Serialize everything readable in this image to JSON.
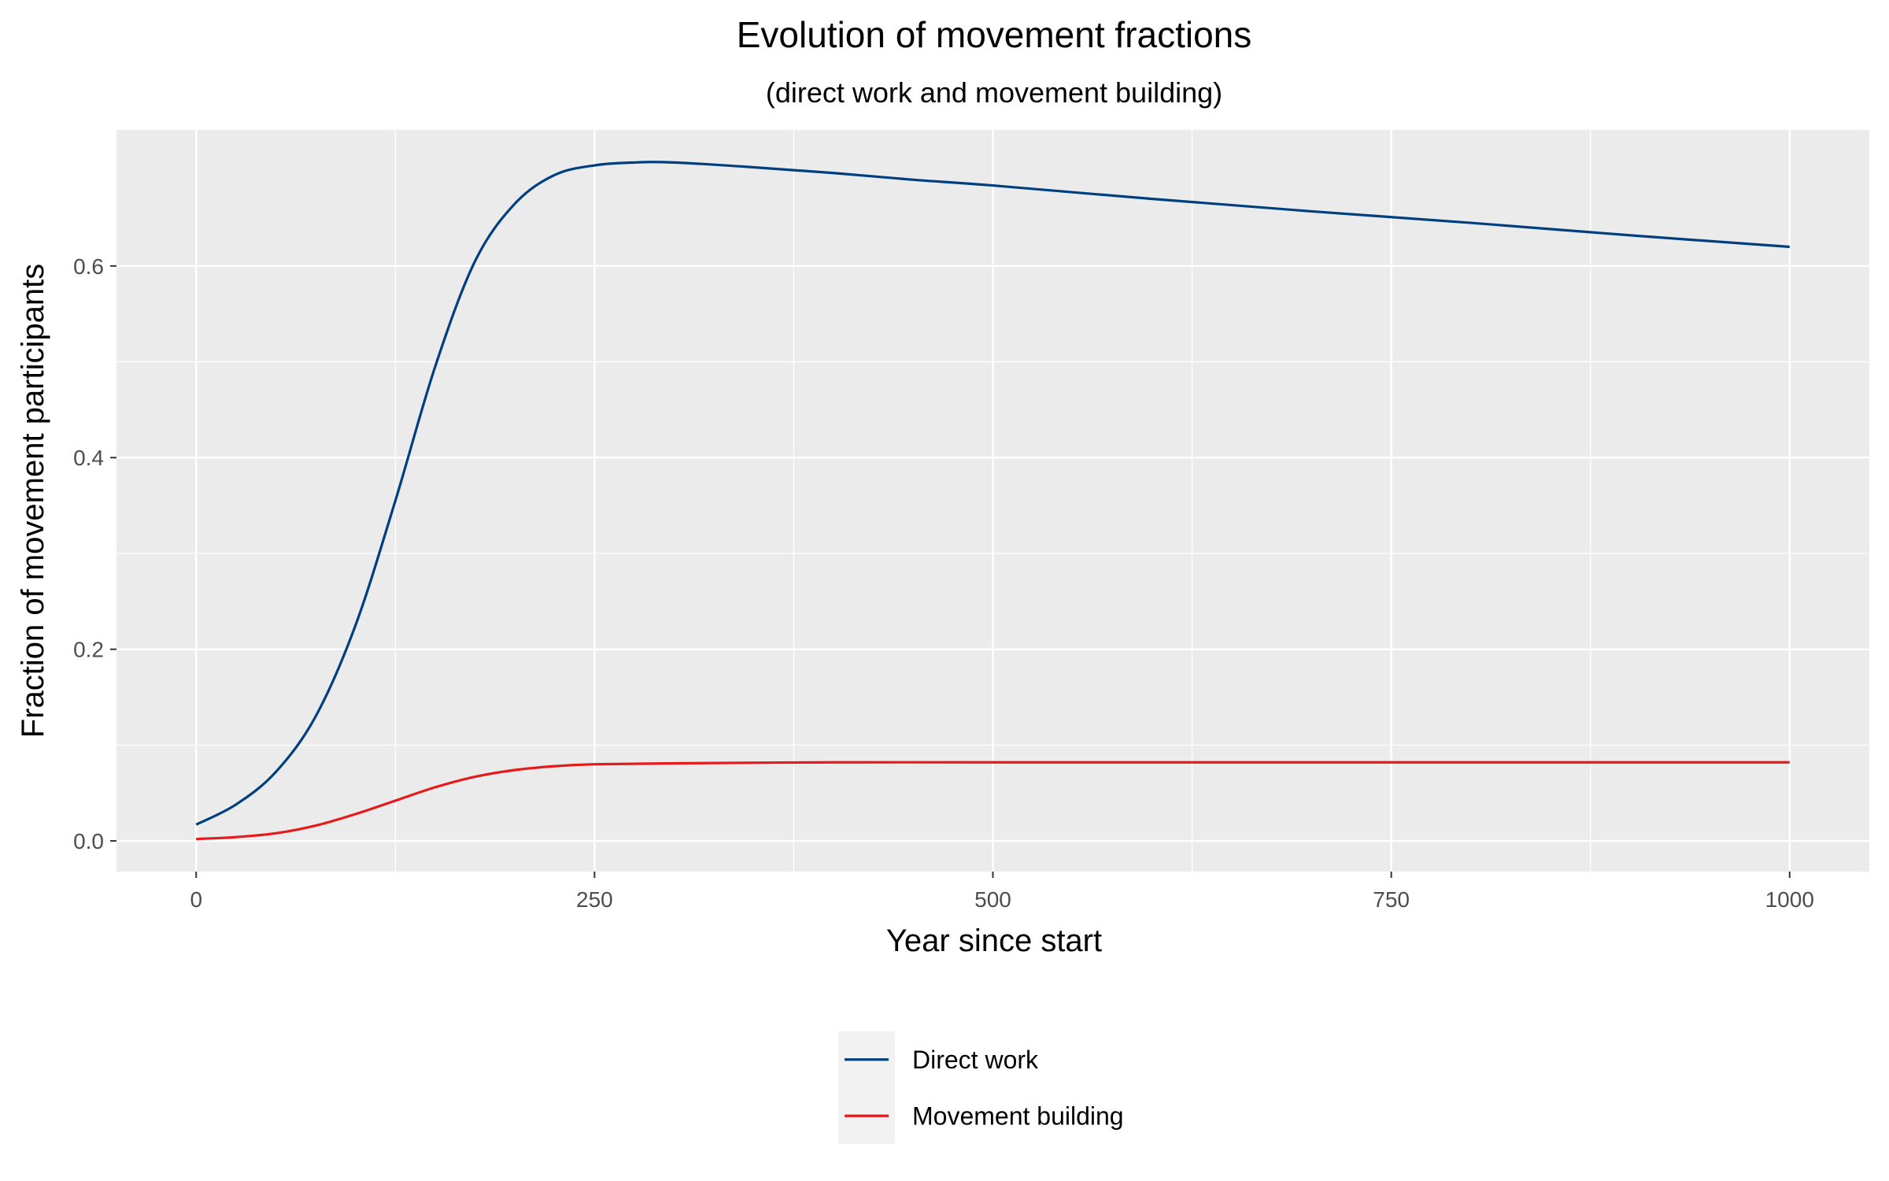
{
  "chart_data": {
    "type": "line",
    "title": "Evolution of movement fractions",
    "subtitle": "(direct work and movement building)",
    "xlabel": "Year since start",
    "ylabel": "Fraction of movement participants",
    "xlim": [
      -50,
      1050
    ],
    "ylim": [
      -0.032,
      0.742
    ],
    "x_ticks": [
      0,
      250,
      500,
      750,
      1000
    ],
    "x_tick_labels": [
      "0",
      "250",
      "500",
      "750",
      "1000"
    ],
    "y_ticks": [
      0.0,
      0.2,
      0.4,
      0.6
    ],
    "y_tick_labels": [
      "0.0",
      "0.2",
      "0.4",
      "0.6"
    ],
    "grid": true,
    "legend_position": "bottom",
    "series": [
      {
        "name": "Direct work",
        "color": "#003f7f",
        "x": [
          0,
          25,
          50,
          75,
          100,
          125,
          150,
          175,
          200,
          225,
          250,
          275,
          300,
          350,
          400,
          450,
          500,
          600,
          700,
          800,
          900,
          1000
        ],
        "y": [
          0.017,
          0.038,
          0.072,
          0.13,
          0.225,
          0.355,
          0.495,
          0.605,
          0.665,
          0.695,
          0.705,
          0.708,
          0.708,
          0.703,
          0.697,
          0.69,
          0.684,
          0.67,
          0.657,
          0.645,
          0.632,
          0.62
        ]
      },
      {
        "name": "Movement building",
        "color": "#e41a1c",
        "x": [
          0,
          25,
          50,
          75,
          100,
          125,
          150,
          175,
          200,
          225,
          250,
          300,
          400,
          500,
          600,
          700,
          800,
          900,
          1000
        ],
        "y": [
          0.002,
          0.004,
          0.008,
          0.016,
          0.028,
          0.042,
          0.056,
          0.067,
          0.074,
          0.078,
          0.08,
          0.081,
          0.082,
          0.082,
          0.082,
          0.082,
          0.082,
          0.082,
          0.082
        ]
      }
    ]
  }
}
